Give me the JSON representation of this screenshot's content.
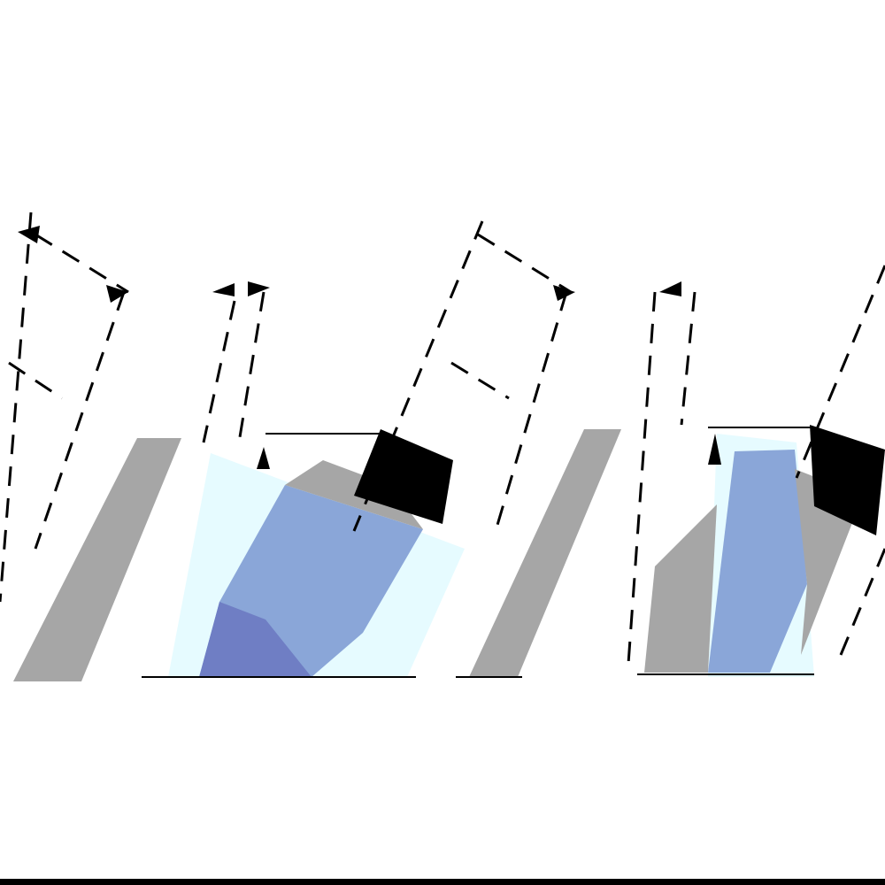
{
  "colors": {
    "background": "#ffffff",
    "gray": "#a6a6a6",
    "dark_gray": "#7a7a7a",
    "cyan": "#e6fbff",
    "blue": "#8aa6d8",
    "deep_blue": "#6f7ec4",
    "black": "#000000"
  }
}
